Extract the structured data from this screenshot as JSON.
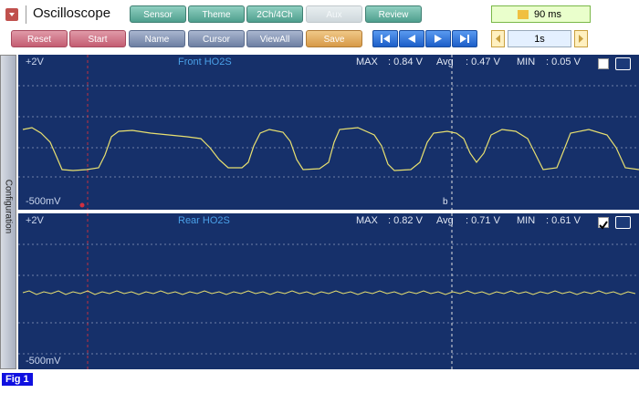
{
  "toolbar": {
    "title": "Oscilloscope",
    "tabs": [
      "Sensor",
      "Theme",
      "2Ch/4Ch",
      "Aux",
      "Review"
    ],
    "interval": "90 ms",
    "buttons": [
      "Reset",
      "Start",
      "Name",
      "Cursor",
      "ViewAll",
      "Save"
    ],
    "timebase": "1s"
  },
  "sidebar": {
    "label": "Configuration"
  },
  "channels": [
    {
      "name": "Front HO2S",
      "top": "+2V",
      "bottom": "-500mV",
      "max_label": "MAX",
      "max": ": 0.84 V",
      "avg_label": "Avg",
      "avg": ": 0.47 V",
      "min_label": "MIN",
      "min": ": 0.05 V"
    },
    {
      "name": "Rear HO2S",
      "top": "+2V",
      "bottom": "-500mV",
      "max_label": "MAX",
      "max": ": 0.82 V",
      "avg_label": "Avg",
      "avg": ": 0.71 V",
      "min_label": "MIN",
      "min": ": 0.61 V"
    }
  ],
  "cursor_label": "b",
  "caption": "Fig 1"
}
